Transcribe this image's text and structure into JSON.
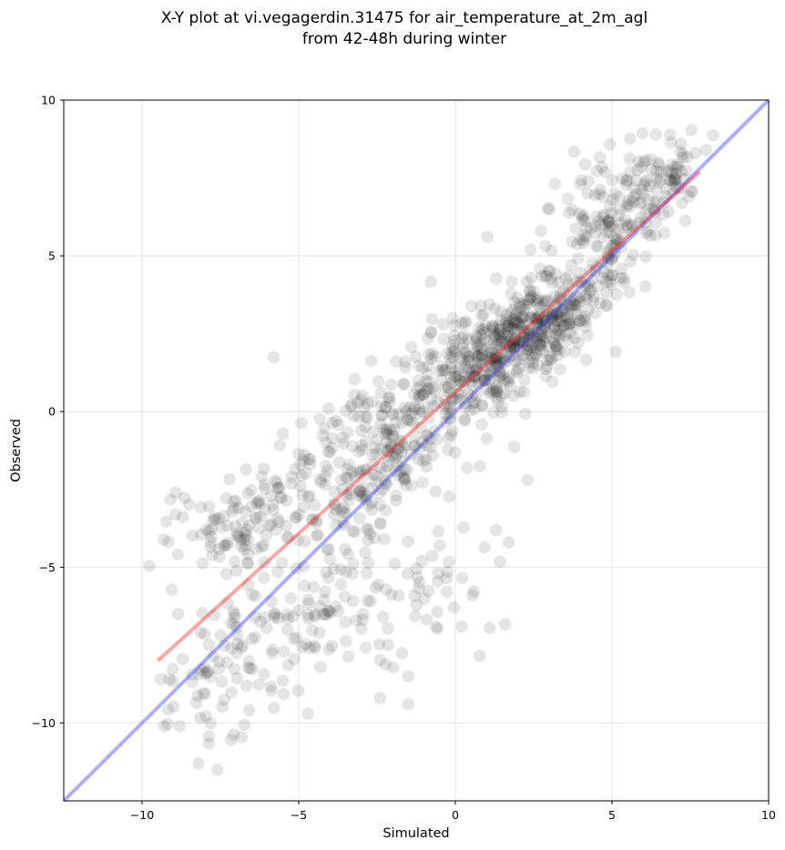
{
  "chart_data": {
    "type": "scatter",
    "title": "X-Y plot at vi.vegagerdin.31475 for air_temperature_at_2m_agl",
    "subtitle": "from 42-48h during winter",
    "xlabel": "Simulated",
    "ylabel": "Observed",
    "xlim": [
      -12.5,
      10
    ],
    "ylim": [
      -12.5,
      10
    ],
    "xticks": [
      -10,
      -5,
      0,
      5,
      10
    ],
    "yticks": [
      -10,
      -5,
      0,
      5,
      10
    ],
    "xtick_labels": [
      "−10",
      "−5",
      "0",
      "5",
      "10"
    ],
    "ytick_labels": [
      "−10",
      "−5",
      "0",
      "5",
      "10"
    ],
    "grid": true,
    "colors": {
      "points": "#000000",
      "fit_line": "#ef2b2b",
      "identity_line": "#3f3fef",
      "grid": "#e6e6e6"
    },
    "lines": [
      {
        "kind": "identity",
        "x": [
          -12.5,
          10
        ],
        "y": [
          -12.5,
          10
        ]
      },
      {
        "kind": "regression",
        "x": [
          -9.5,
          7.8
        ],
        "y": [
          -8.0,
          7.7
        ]
      }
    ],
    "point_clusters": [
      {
        "cx": 2.5,
        "cy": 2.6,
        "sx": 1.3,
        "sy": 1.1,
        "rho": 0.7,
        "n": 360
      },
      {
        "cx": 5.3,
        "cy": 6.3,
        "sx": 1.0,
        "sy": 1.2,
        "rho": 0.5,
        "n": 160
      },
      {
        "cx": 0.3,
        "cy": 1.0,
        "sx": 1.4,
        "sy": 1.4,
        "rho": 0.6,
        "n": 210
      },
      {
        "cx": -2.5,
        "cy": -1.2,
        "sx": 1.6,
        "sy": 1.6,
        "rho": 0.55,
        "n": 230
      },
      {
        "cx": -6.8,
        "cy": -3.4,
        "sx": 1.3,
        "sy": 1.1,
        "rho": 0.3,
        "n": 110
      },
      {
        "cx": -4.5,
        "cy": -6.3,
        "sx": 1.4,
        "sy": 1.4,
        "rho": 0.3,
        "n": 100
      },
      {
        "cx": -7.5,
        "cy": -8.6,
        "sx": 1.2,
        "sy": 1.3,
        "rho": 0.4,
        "n": 80
      },
      {
        "cx": -1.0,
        "cy": -5.5,
        "sx": 1.1,
        "sy": 1.3,
        "rho": 0.1,
        "n": 45
      },
      {
        "cx": 7.0,
        "cy": 7.6,
        "sx": 0.5,
        "sy": 0.6,
        "rho": 0.3,
        "n": 40
      }
    ],
    "points": [
      [
        -8.2,
        -11.3
      ],
      [
        -7.6,
        -11.5
      ],
      [
        -1.5,
        -9.4
      ],
      [
        -2.4,
        -9.2
      ],
      [
        -1.5,
        -8.5
      ],
      [
        -4.7,
        -9.7
      ],
      [
        -8.8,
        -10.1
      ],
      [
        -0.6,
        -6.9
      ],
      [
        0.2,
        -6.9
      ],
      [
        -0.5,
        -4.3
      ],
      [
        2.3,
        -2.2
      ],
      [
        1.7,
        -4.2
      ],
      [
        1.3,
        -3.8
      ],
      [
        2.4,
        5.2
      ],
      [
        8.0,
        8.4
      ],
      [
        6.4,
        8.9
      ],
      [
        7.2,
        8.6
      ],
      [
        3.0,
        6.5
      ],
      [
        4.0,
        7.3
      ],
      [
        -0.4,
        2.8
      ]
    ]
  }
}
